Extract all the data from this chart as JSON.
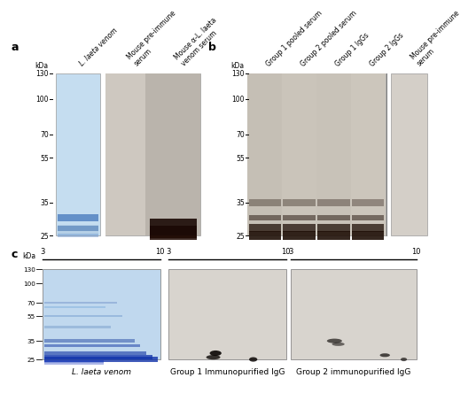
{
  "panel_a": {
    "label": "a",
    "kda_marks": [
      130,
      100,
      70,
      55,
      35,
      25
    ],
    "col_labels": [
      "L. laeta venom",
      "Mouse pre-immune\nserum",
      "Mouse α-L. laeta\nvenom serum"
    ],
    "col_italic": [
      true,
      false,
      false
    ],
    "lane1_bg": "#c8dff0",
    "wb_bg_light": "#d8d0c8",
    "wb_bg_dark": "#c0b8b0"
  },
  "panel_b": {
    "label": "b",
    "kda_marks": [
      130,
      100,
      70,
      55,
      35,
      25
    ],
    "col_labels": [
      "Group 1 pooled serum",
      "Group 2 pooled serum",
      "Group 1 IgGs",
      "Group 2 IgGs",
      "Mouse pre-immune\nserum"
    ],
    "bg_light": "#d0c8c0",
    "bg_blank": "#d8d0c8"
  },
  "panel_c": {
    "label": "c",
    "kda_marks": [
      130,
      100,
      70,
      55,
      35,
      25
    ],
    "sub_labels": [
      "L. laeta venom",
      "Group 1 Immunopurified IgG",
      "Group 2 immunopurified IgG"
    ],
    "sub_italic": [
      true,
      false,
      false
    ],
    "gel_bg": "#c0d8f0",
    "wb_bg": "#d8d4ce"
  },
  "background_color": "#ffffff",
  "kda_fontsize": 5.5,
  "label_fontsize": 9,
  "col_label_fontsize": 5.5,
  "sublabel_fontsize": 6.5
}
